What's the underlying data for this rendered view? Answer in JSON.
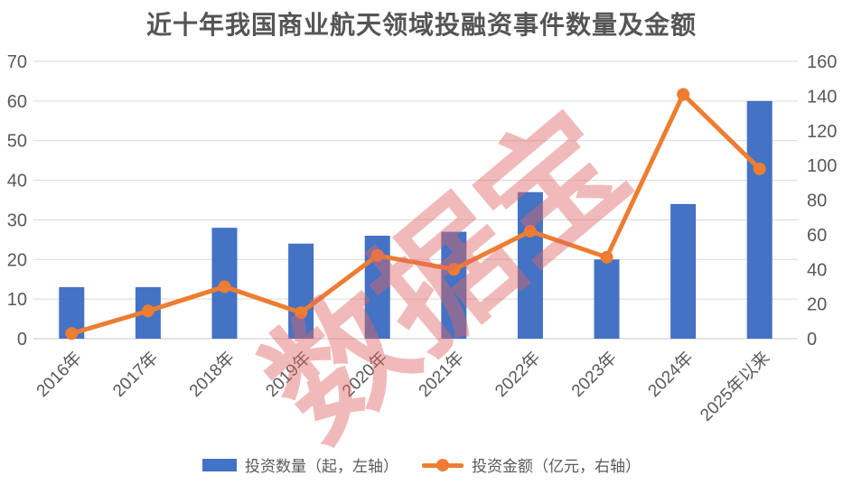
{
  "title": "近十年我国商业航天领域投融资事件数量及金额",
  "watermark": "数据宝",
  "legend": {
    "items": [
      {
        "label": "投资数量（起，左轴）",
        "swatch": "bar-swatch",
        "color": "#4472C4"
      },
      {
        "label": "投资金额（亿元，右轴）",
        "swatch": "line-marker-swatch",
        "color": "#ED7D31"
      }
    ],
    "position": "bottom"
  },
  "colors": {
    "bar": "#4472C4",
    "line": "#ED7D31",
    "grid": "#D9D9D9",
    "axis_line": "#C9C9C9",
    "axis_text": "#595959",
    "title_text": "#555555",
    "watermark_pink": "#E06767"
  },
  "chart_data": {
    "type": "bar",
    "subtype": "combo-bar-line-dual-axis",
    "title": "近十年我国商业航天领域投融资事件数量及金额",
    "categories": [
      "2016年",
      "2017年",
      "2018年",
      "2019年",
      "2020年",
      "2021年",
      "2022年",
      "2023年",
      "2024年",
      "2025年以来"
    ],
    "series": [
      {
        "name": "投资数量（起，左轴）",
        "type": "bar",
        "axis": "left",
        "color": "#4472C4",
        "values": [
          13,
          13,
          28,
          24,
          26,
          27,
          37,
          20,
          34,
          60
        ]
      },
      {
        "name": "投资金额（亿元，右轴）",
        "type": "line",
        "axis": "right",
        "color": "#ED7D31",
        "values": [
          3,
          16,
          30,
          15,
          48,
          40,
          62,
          47,
          141,
          98
        ]
      }
    ],
    "left_axis": {
      "min": 0,
      "max": 70,
      "step": 10,
      "ticks": [
        0,
        10,
        20,
        30,
        40,
        50,
        60,
        70
      ]
    },
    "right_axis": {
      "min": 0,
      "max": 160,
      "step": 20,
      "ticks": [
        0,
        20,
        40,
        60,
        80,
        100,
        120,
        140,
        160
      ]
    },
    "xlabel": "",
    "ylabel": "",
    "grid": true,
    "x_label_rotation": -45,
    "legend_position": "bottom"
  }
}
